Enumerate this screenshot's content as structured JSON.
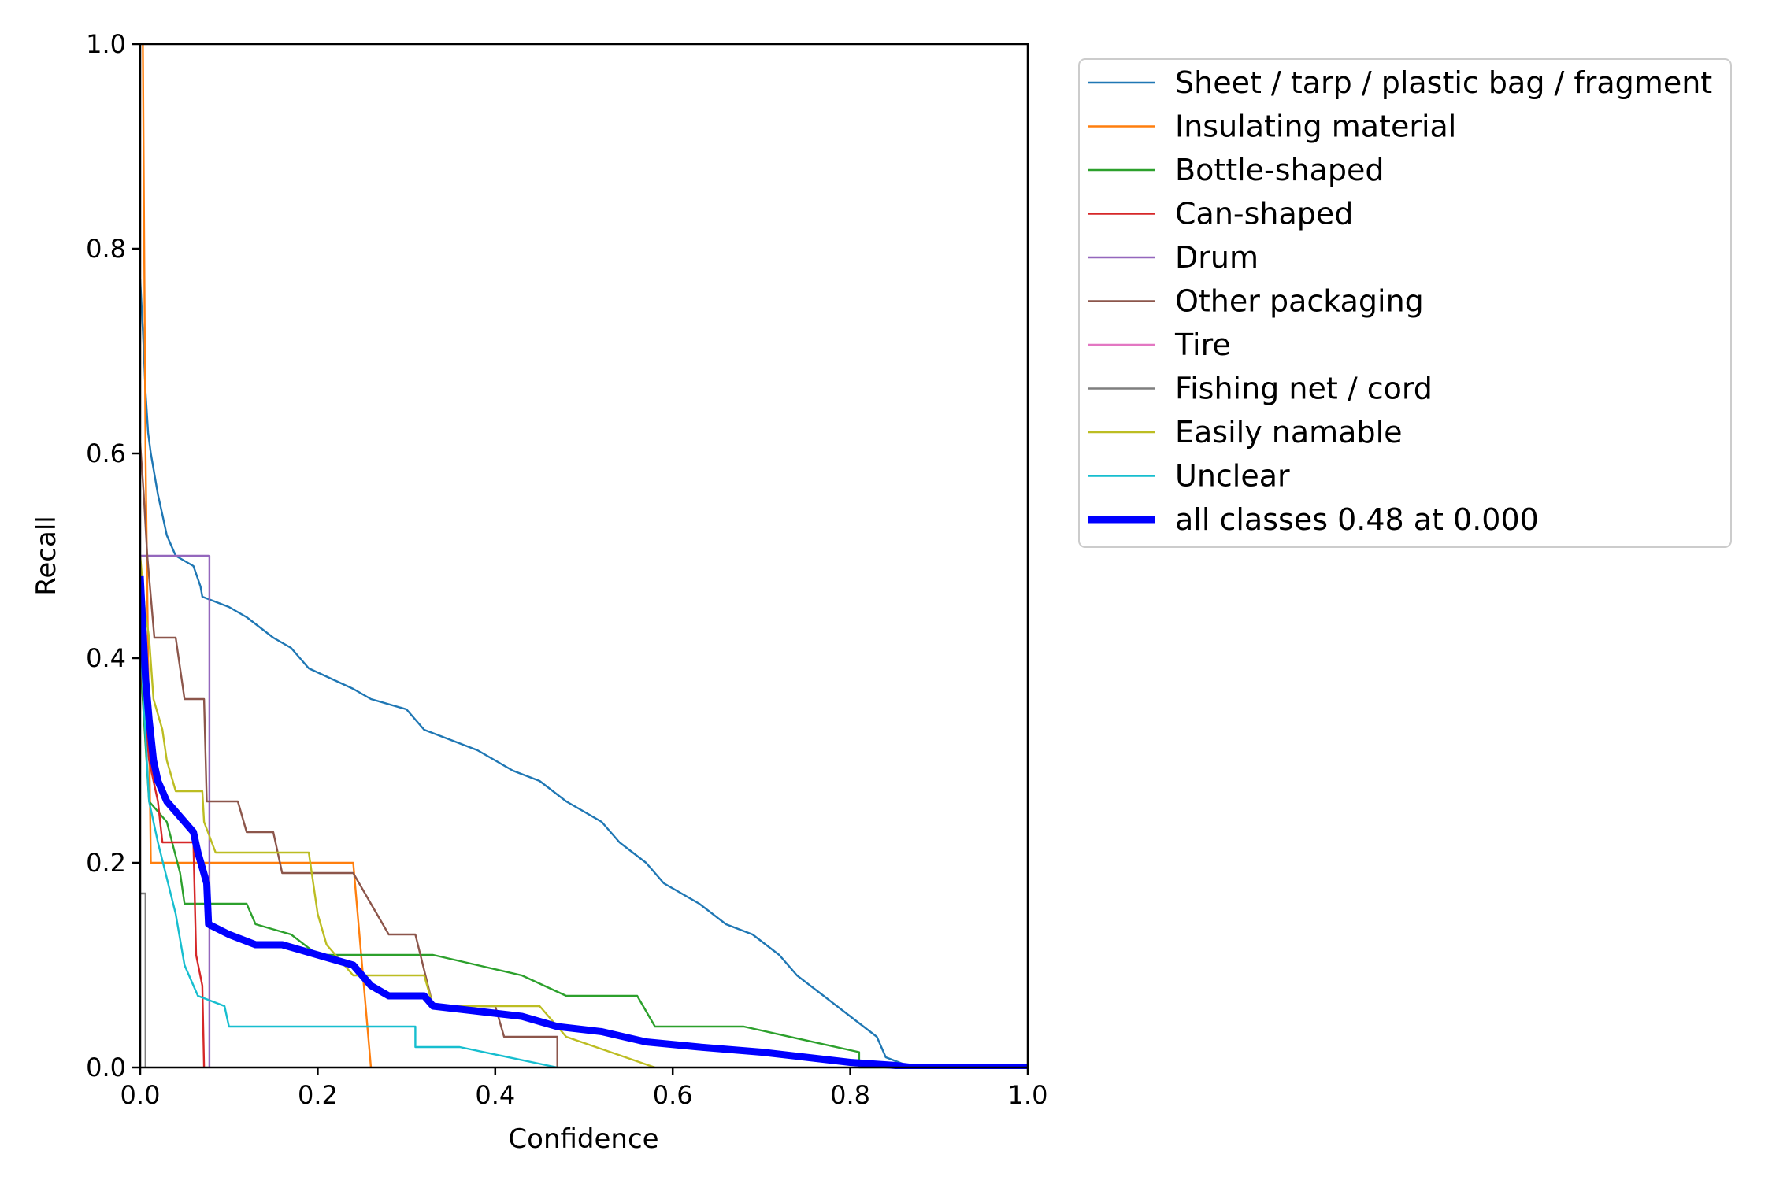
{
  "chart_data": {
    "type": "line",
    "title": "",
    "xlabel": "Confidence",
    "ylabel": "Recall",
    "xlim": [
      0.0,
      1.0
    ],
    "ylim": [
      0.0,
      1.0
    ],
    "xticks": [
      "0.0",
      "0.2",
      "0.4",
      "0.6",
      "0.8",
      "1.0"
    ],
    "yticks": [
      "0.0",
      "0.2",
      "0.4",
      "0.6",
      "0.8",
      "1.0"
    ],
    "grid": false,
    "legend_position": "outside-right-top",
    "series": [
      {
        "name": "Sheet / tarp / plastic bag / fragment",
        "color": "#1f77b4",
        "points": [
          [
            0.0,
            0.77
          ],
          [
            0.003,
            0.72
          ],
          [
            0.006,
            0.66
          ],
          [
            0.009,
            0.62
          ],
          [
            0.012,
            0.6
          ],
          [
            0.016,
            0.58
          ],
          [
            0.02,
            0.56
          ],
          [
            0.025,
            0.54
          ],
          [
            0.03,
            0.52
          ],
          [
            0.04,
            0.5
          ],
          [
            0.06,
            0.49
          ],
          [
            0.068,
            0.47
          ],
          [
            0.07,
            0.46
          ],
          [
            0.1,
            0.45
          ],
          [
            0.12,
            0.44
          ],
          [
            0.15,
            0.42
          ],
          [
            0.17,
            0.41
          ],
          [
            0.19,
            0.39
          ],
          [
            0.24,
            0.37
          ],
          [
            0.26,
            0.36
          ],
          [
            0.3,
            0.35
          ],
          [
            0.32,
            0.33
          ],
          [
            0.35,
            0.32
          ],
          [
            0.38,
            0.31
          ],
          [
            0.42,
            0.29
          ],
          [
            0.45,
            0.28
          ],
          [
            0.48,
            0.26
          ],
          [
            0.52,
            0.24
          ],
          [
            0.54,
            0.22
          ],
          [
            0.57,
            0.2
          ],
          [
            0.59,
            0.18
          ],
          [
            0.63,
            0.16
          ],
          [
            0.66,
            0.14
          ],
          [
            0.69,
            0.13
          ],
          [
            0.72,
            0.11
          ],
          [
            0.74,
            0.09
          ],
          [
            0.77,
            0.07
          ],
          [
            0.8,
            0.05
          ],
          [
            0.83,
            0.03
          ],
          [
            0.84,
            0.01
          ],
          [
            0.87,
            0.0
          ],
          [
            1.0,
            0.0
          ]
        ]
      },
      {
        "name": "Insulating material",
        "color": "#ff7f0e",
        "points": [
          [
            0.003,
            1.0
          ],
          [
            0.006,
            0.6
          ],
          [
            0.009,
            0.4
          ],
          [
            0.012,
            0.2
          ],
          [
            0.24,
            0.2
          ],
          [
            0.26,
            0.0
          ]
        ]
      },
      {
        "name": "Bottle-shaped",
        "color": "#2ca02c",
        "points": [
          [
            0.0,
            0.4
          ],
          [
            0.005,
            0.33
          ],
          [
            0.01,
            0.26
          ],
          [
            0.03,
            0.24
          ],
          [
            0.045,
            0.19
          ],
          [
            0.05,
            0.16
          ],
          [
            0.12,
            0.16
          ],
          [
            0.13,
            0.14
          ],
          [
            0.17,
            0.13
          ],
          [
            0.2,
            0.11
          ],
          [
            0.33,
            0.11
          ],
          [
            0.38,
            0.1
          ],
          [
            0.43,
            0.09
          ],
          [
            0.48,
            0.07
          ],
          [
            0.56,
            0.07
          ],
          [
            0.58,
            0.04
          ],
          [
            0.68,
            0.04
          ],
          [
            0.81,
            0.015
          ],
          [
            0.81,
            0.0
          ],
          [
            1.0,
            0.0
          ]
        ]
      },
      {
        "name": "Can-shaped",
        "color": "#d62728",
        "points": [
          [
            0.0,
            0.4
          ],
          [
            0.005,
            0.35
          ],
          [
            0.01,
            0.3
          ],
          [
            0.02,
            0.26
          ],
          [
            0.025,
            0.22
          ],
          [
            0.06,
            0.22
          ],
          [
            0.063,
            0.11
          ],
          [
            0.07,
            0.08
          ],
          [
            0.072,
            0.0
          ]
        ]
      },
      {
        "name": "Drum",
        "color": "#9467bd",
        "points": [
          [
            0.0,
            0.5
          ],
          [
            0.078,
            0.5
          ],
          [
            0.078,
            0.0
          ]
        ]
      },
      {
        "name": "Other packaging",
        "color": "#8c564b",
        "points": [
          [
            0.0,
            0.61
          ],
          [
            0.004,
            0.56
          ],
          [
            0.008,
            0.5
          ],
          [
            0.012,
            0.46
          ],
          [
            0.016,
            0.42
          ],
          [
            0.04,
            0.42
          ],
          [
            0.045,
            0.39
          ],
          [
            0.05,
            0.36
          ],
          [
            0.072,
            0.36
          ],
          [
            0.075,
            0.26
          ],
          [
            0.11,
            0.26
          ],
          [
            0.12,
            0.23
          ],
          [
            0.15,
            0.23
          ],
          [
            0.16,
            0.19
          ],
          [
            0.24,
            0.19
          ],
          [
            0.26,
            0.16
          ],
          [
            0.28,
            0.13
          ],
          [
            0.31,
            0.13
          ],
          [
            0.33,
            0.06
          ],
          [
            0.4,
            0.06
          ],
          [
            0.41,
            0.03
          ],
          [
            0.47,
            0.03
          ],
          [
            0.47,
            0.0
          ]
        ]
      },
      {
        "name": "Tire",
        "color": "#e377c2",
        "points": []
      },
      {
        "name": "Fishing net / cord",
        "color": "#7f7f7f",
        "points": [
          [
            0.0,
            0.17
          ],
          [
            0.006,
            0.17
          ],
          [
            0.006,
            0.0
          ]
        ]
      },
      {
        "name": "Easily namable",
        "color": "#bcbd22",
        "points": [
          [
            0.0,
            0.5
          ],
          [
            0.005,
            0.45
          ],
          [
            0.01,
            0.42
          ],
          [
            0.015,
            0.36
          ],
          [
            0.025,
            0.33
          ],
          [
            0.03,
            0.3
          ],
          [
            0.04,
            0.27
          ],
          [
            0.07,
            0.27
          ],
          [
            0.072,
            0.24
          ],
          [
            0.085,
            0.21
          ],
          [
            0.19,
            0.21
          ],
          [
            0.2,
            0.15
          ],
          [
            0.21,
            0.12
          ],
          [
            0.24,
            0.09
          ],
          [
            0.32,
            0.09
          ],
          [
            0.33,
            0.06
          ],
          [
            0.45,
            0.06
          ],
          [
            0.48,
            0.03
          ],
          [
            0.58,
            0.0
          ]
        ]
      },
      {
        "name": "Unclear",
        "color": "#17becf",
        "points": [
          [
            0.0,
            0.42
          ],
          [
            0.01,
            0.26
          ],
          [
            0.02,
            0.22
          ],
          [
            0.04,
            0.15
          ],
          [
            0.05,
            0.1
          ],
          [
            0.065,
            0.07
          ],
          [
            0.095,
            0.06
          ],
          [
            0.1,
            0.04
          ],
          [
            0.31,
            0.04
          ],
          [
            0.31,
            0.02
          ],
          [
            0.36,
            0.02
          ],
          [
            0.47,
            0.0
          ]
        ]
      },
      {
        "name": "all classes 0.48 at 0.000",
        "color": "#0000ff",
        "bold": true,
        "points": [
          [
            0.0,
            0.48
          ],
          [
            0.003,
            0.43
          ],
          [
            0.006,
            0.38
          ],
          [
            0.01,
            0.34
          ],
          [
            0.015,
            0.3
          ],
          [
            0.02,
            0.28
          ],
          [
            0.03,
            0.26
          ],
          [
            0.04,
            0.25
          ],
          [
            0.06,
            0.23
          ],
          [
            0.065,
            0.21
          ],
          [
            0.075,
            0.18
          ],
          [
            0.077,
            0.14
          ],
          [
            0.1,
            0.13
          ],
          [
            0.13,
            0.12
          ],
          [
            0.16,
            0.12
          ],
          [
            0.2,
            0.11
          ],
          [
            0.24,
            0.1
          ],
          [
            0.26,
            0.08
          ],
          [
            0.28,
            0.07
          ],
          [
            0.32,
            0.07
          ],
          [
            0.33,
            0.06
          ],
          [
            0.38,
            0.055
          ],
          [
            0.43,
            0.05
          ],
          [
            0.47,
            0.04
          ],
          [
            0.52,
            0.035
          ],
          [
            0.57,
            0.025
          ],
          [
            0.63,
            0.02
          ],
          [
            0.7,
            0.015
          ],
          [
            0.75,
            0.01
          ],
          [
            0.8,
            0.005
          ],
          [
            0.85,
            0.002
          ],
          [
            0.87,
            0.0
          ],
          [
            1.0,
            0.0
          ]
        ]
      }
    ]
  }
}
